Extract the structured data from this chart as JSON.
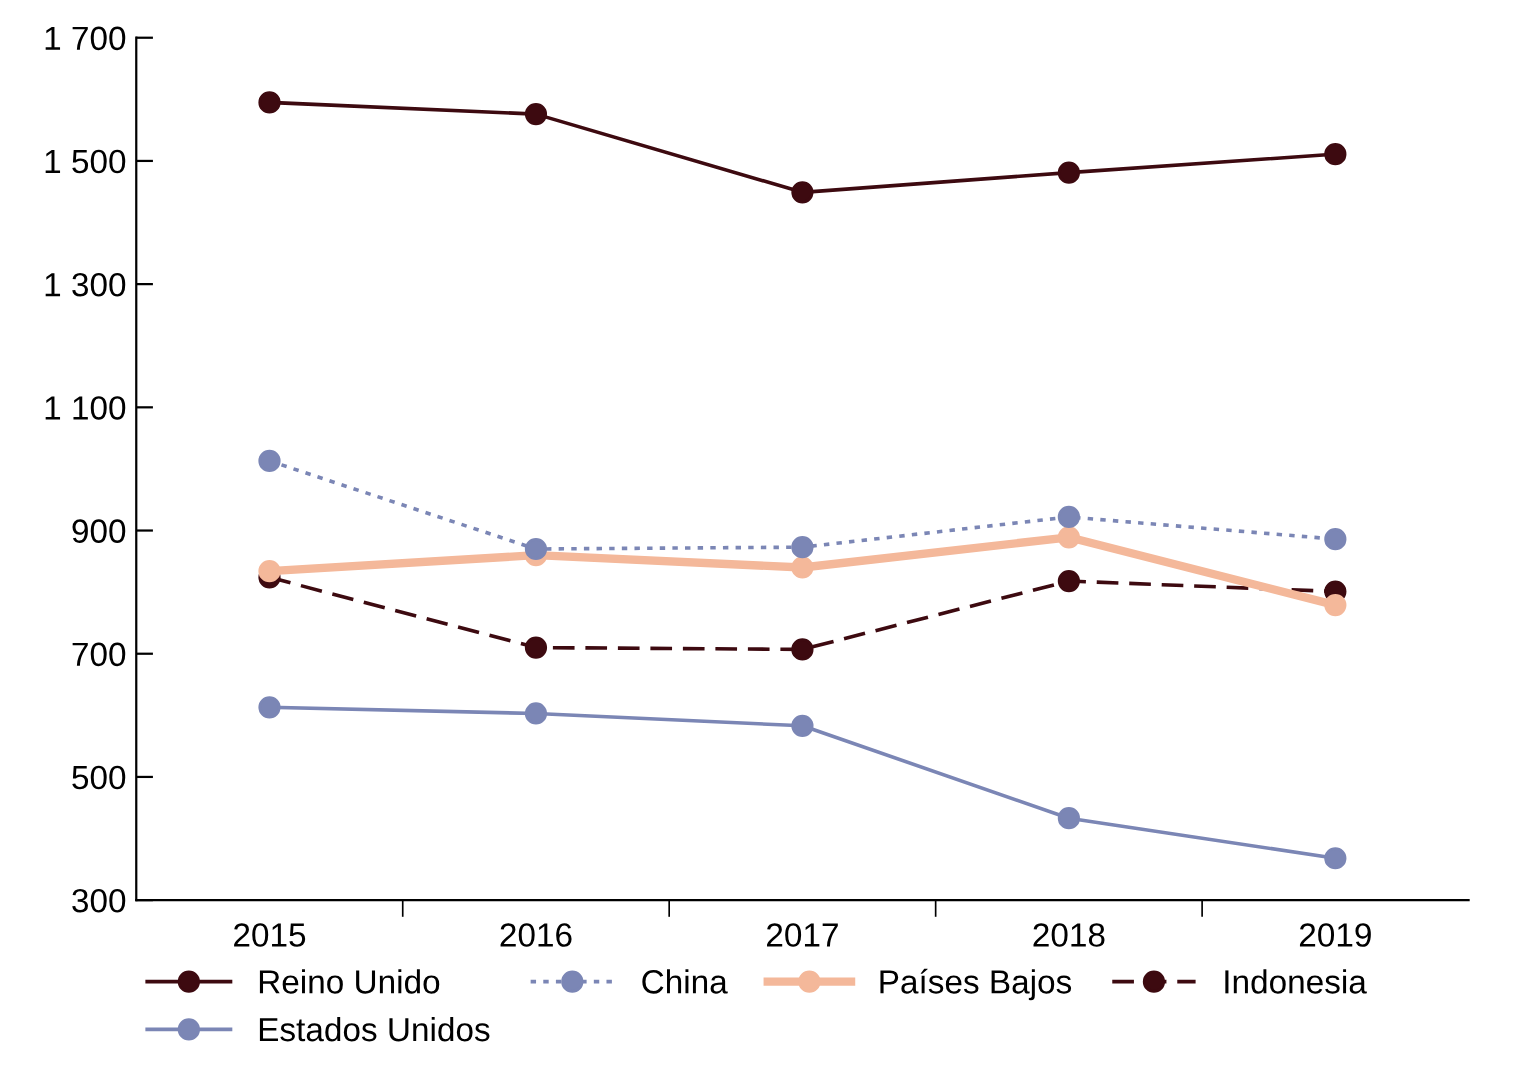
{
  "chart_data": {
    "type": "line",
    "categories": [
      "2015",
      "2016",
      "2017",
      "2018",
      "2019"
    ],
    "series": [
      {
        "name": "Reino Unido",
        "color": "#3d0a10",
        "values": [
          1595,
          1576,
          1449,
          1481,
          1511
        ],
        "line_style": "solid"
      },
      {
        "name": "China",
        "color": "#7b86b5",
        "values": [
          1013,
          870,
          873,
          922,
          886
        ],
        "line_style": "dotted"
      },
      {
        "name": "Países Bajos",
        "color": "#f4b89a",
        "values": [
          834,
          860,
          840,
          889,
          779
        ],
        "line_style": "solid"
      },
      {
        "name": "Indonesia",
        "color": "#3d0a10",
        "values": [
          824,
          710,
          707,
          818,
          801
        ],
        "line_style": "dashed"
      },
      {
        "name": "Estados Unidos",
        "color": "#7b86b5",
        "values": [
          613,
          603,
          583,
          433,
          368
        ],
        "line_style": "solid"
      }
    ],
    "ylim": [
      300,
      1700
    ],
    "yticks": [
      300,
      500,
      700,
      900,
      {
        "value": 1100,
        "label": "1 100"
      },
      {
        "value": 1300,
        "label": "1 300"
      },
      {
        "value": 1500,
        "label": "1 500"
      },
      {
        "value": 1700,
        "label": "1 700"
      }
    ],
    "marker": "circle",
    "grid": false,
    "legend": "bottom"
  }
}
